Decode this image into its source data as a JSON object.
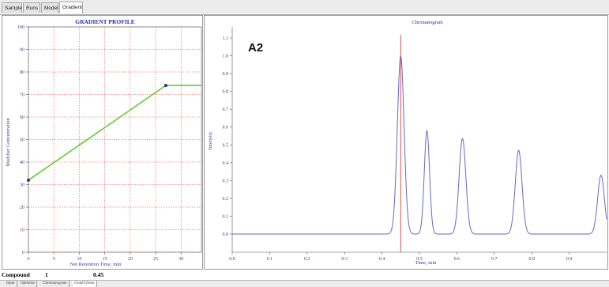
{
  "tabs": [
    "Sample",
    "Runs",
    "Model",
    "Gradient"
  ],
  "gradient": {
    "title": "GRADIENT PROFILE",
    "xlabel": "Net Retention Time, min",
    "ylabel": "Modifier Concentration",
    "xticks": [
      "0",
      "5",
      "10",
      "15",
      "20",
      "25",
      "30"
    ],
    "yticks": [
      "0",
      "10",
      "20",
      "30",
      "40",
      "50",
      "60",
      "70",
      "80",
      "90",
      "100"
    ],
    "line_color": "#66cc33",
    "grid_color": "#ff3333"
  },
  "chromatogram": {
    "title": "Chromatogram",
    "panel_label": "A2",
    "xlabel": "Time, min",
    "ylabel": "Intensity",
    "xticks": [
      "0.0",
      "0.1",
      "0.2",
      "0.3",
      "0.4",
      "0.5",
      "0.6",
      "0.7",
      "0.8",
      "0.9"
    ],
    "yticks": [
      "0.0",
      "0.1",
      "0.2",
      "0.3",
      "0.4",
      "0.5",
      "0.6",
      "0.7",
      "0.8",
      "0.9",
      "1.0",
      "1.1"
    ],
    "trace_color": "#6666cc",
    "marker_color": "#e05050"
  },
  "chart_data": [
    {
      "type": "line",
      "title": "GRADIENT PROFILE",
      "xlabel": "Net Retention Time, min",
      "ylabel": "Modifier Concentration",
      "xlim": [
        0,
        34
      ],
      "ylim": [
        0,
        100
      ],
      "grid": true,
      "x": [
        0,
        27,
        34
      ],
      "y": [
        32,
        74,
        74
      ],
      "markers": [
        {
          "x": 0,
          "y": 32
        },
        {
          "x": 27,
          "y": 74
        }
      ]
    },
    {
      "type": "line",
      "title": "Chromatogram",
      "xlabel": "Time, min",
      "ylabel": "Intensity",
      "xlim": [
        0,
        1.0
      ],
      "ylim": [
        0,
        1.1
      ],
      "grid": false,
      "marker_x": 0.45,
      "peaks": [
        {
          "x": 0.45,
          "height": 1.0,
          "width": 0.009
        },
        {
          "x": 0.52,
          "height": 0.58,
          "width": 0.007
        },
        {
          "x": 0.615,
          "height": 0.535,
          "width": 0.009
        },
        {
          "x": 0.765,
          "height": 0.47,
          "width": 0.009
        },
        {
          "x": 0.985,
          "height": 0.33,
          "width": 0.009
        }
      ]
    }
  ],
  "status": {
    "label": "Compound",
    "number": "1",
    "value": "0.45"
  },
  "bottom_tabs": [
    "Input",
    "Optimize",
    "Chromatogram",
    "Grad/Chrom"
  ]
}
